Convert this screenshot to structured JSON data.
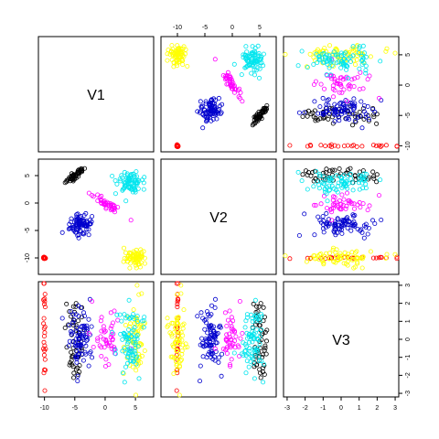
{
  "chart_data": {
    "type": "scatter",
    "variables": [
      "V1",
      "V2",
      "V3"
    ],
    "colors": {
      "black": "#000000",
      "red": "#ff0000",
      "yellow": "#ffff00",
      "blue": "#0000cd",
      "magenta": "#ff00ff",
      "cyan": "#00e5ee"
    },
    "ranges": {
      "V1": [
        -11,
        8
      ],
      "V2": [
        -13,
        8
      ],
      "V3": [
        -3.2,
        3.2
      ]
    },
    "ticks": {
      "V1": {
        "values": [
          -10,
          -5,
          0,
          5
        ],
        "labels": [
          "-10",
          "-5",
          "0",
          "5"
        ]
      },
      "V2": {
        "values": [
          -10,
          -5,
          0,
          5
        ],
        "labels": [
          "-10",
          "-5",
          "0",
          "5"
        ]
      },
      "V3": {
        "values": [
          -3,
          -2,
          -1,
          0,
          1,
          2,
          3
        ],
        "labels": [
          "-3",
          "-2",
          "-1",
          "0",
          "1",
          "2",
          "3"
        ]
      }
    },
    "clusters": [
      {
        "color": "black",
        "n": 50,
        "center": [
          -5,
          5
        ],
        "sd": [
          0.8,
          0.7
        ],
        "v3sd": 1.2,
        "corr": 0.9
      },
      {
        "color": "red",
        "n": 25,
        "center": [
          -10,
          -10
        ],
        "sd": [
          0.1,
          0.1
        ],
        "v3sd": 1.5,
        "corr": 0
      },
      {
        "color": "yellow",
        "n": 70,
        "center": [
          5,
          -10
        ],
        "sd": [
          0.9,
          0.8
        ],
        "v3sd": 1.1,
        "corr": 0
      },
      {
        "color": "blue",
        "n": 85,
        "center": [
          -4,
          -4
        ],
        "sd": [
          0.9,
          0.9
        ],
        "v3sd": 0.8,
        "corr": 0
      },
      {
        "color": "magenta",
        "n": 45,
        "center": [
          0,
          0
        ],
        "sd": [
          1.3,
          1.0
        ],
        "v3sd": 1.0,
        "corr": -0.9
      },
      {
        "color": "cyan",
        "n": 80,
        "center": [
          4,
          4
        ],
        "sd": [
          1.0,
          0.9
        ],
        "v3sd": 0.9,
        "corr": 0
      }
    ]
  }
}
